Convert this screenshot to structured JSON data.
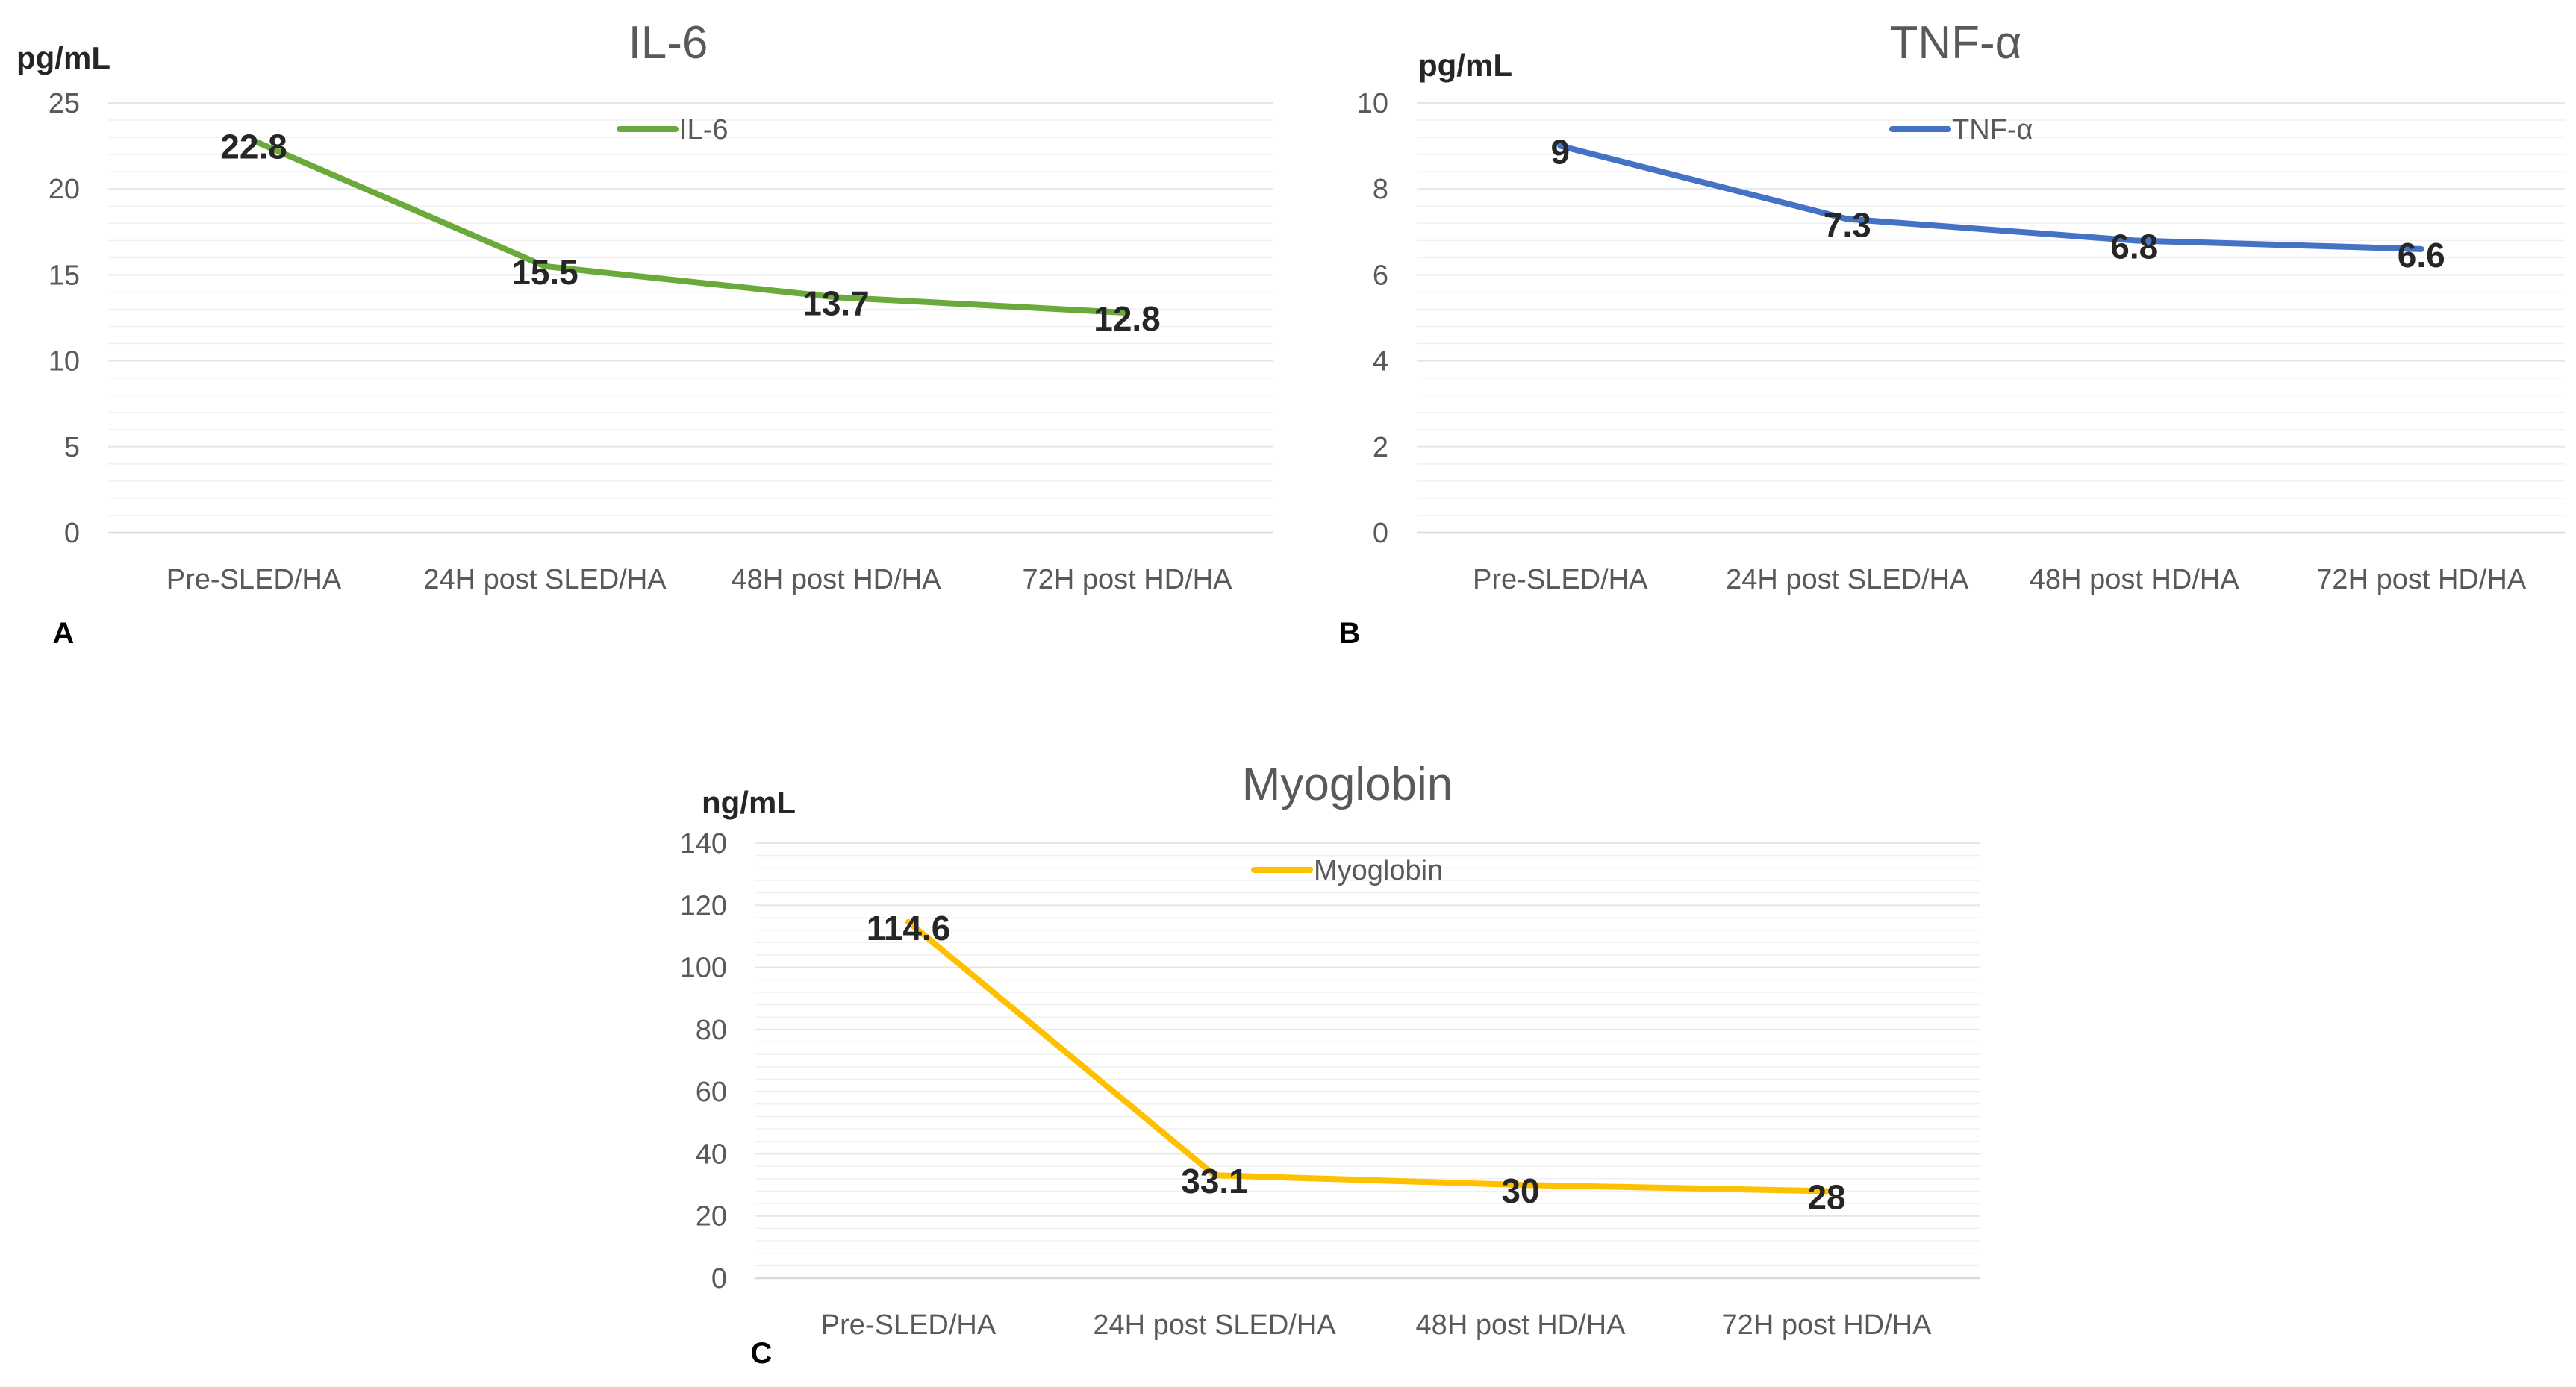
{
  "chart_data": [
    {
      "type": "line",
      "panel": "A",
      "title": "IL-6",
      "ylabel": "pg/mL",
      "xlabel": "",
      "categories": [
        "Pre-SLED/HA",
        "24H post SLED/HA",
        "48H post HD/HA",
        "72H post HD/HA"
      ],
      "series": [
        {
          "name": "IL-6",
          "values": [
            22.8,
            15.5,
            13.7,
            12.8
          ],
          "color": "#6aaa3a"
        }
      ],
      "data_labels": [
        "22.8",
        "15.5",
        "13.7",
        "12.8"
      ],
      "ylim": [
        0,
        25
      ],
      "yticks": [
        0,
        5,
        10,
        15,
        20,
        25
      ],
      "grid": true,
      "legend": "top-center"
    },
    {
      "type": "line",
      "panel": "B",
      "title": "TNF-α",
      "ylabel": "pg/mL",
      "xlabel": "",
      "categories": [
        "Pre-SLED/HA",
        "24H post SLED/HA",
        "48H post HD/HA",
        "72H post HD/HA"
      ],
      "series": [
        {
          "name": "TNF-α",
          "values": [
            9,
            7.3,
            6.8,
            6.6
          ],
          "color": "#4472c4"
        }
      ],
      "data_labels": [
        "9",
        "7.3",
        "6.8",
        "6.6"
      ],
      "ylim": [
        0,
        10
      ],
      "yticks": [
        0,
        2,
        4,
        6,
        8,
        10
      ],
      "grid": true,
      "legend": "top-center"
    },
    {
      "type": "line",
      "panel": "C",
      "title": "Myoglobin",
      "ylabel": "ng/mL",
      "xlabel": "",
      "categories": [
        "Pre-SLED/HA",
        "24H post SLED/HA",
        "48H post HD/HA",
        "72H post HD/HA"
      ],
      "series": [
        {
          "name": "Myoglobin",
          "values": [
            114.6,
            33.1,
            30,
            28
          ],
          "color": "#ffc000"
        }
      ],
      "data_labels": [
        "114.6",
        "33.1",
        "30",
        "28"
      ],
      "ylim": [
        0,
        140
      ],
      "yticks": [
        0,
        20,
        40,
        60,
        80,
        100,
        120,
        140
      ],
      "grid": true,
      "legend": "top-center"
    }
  ]
}
